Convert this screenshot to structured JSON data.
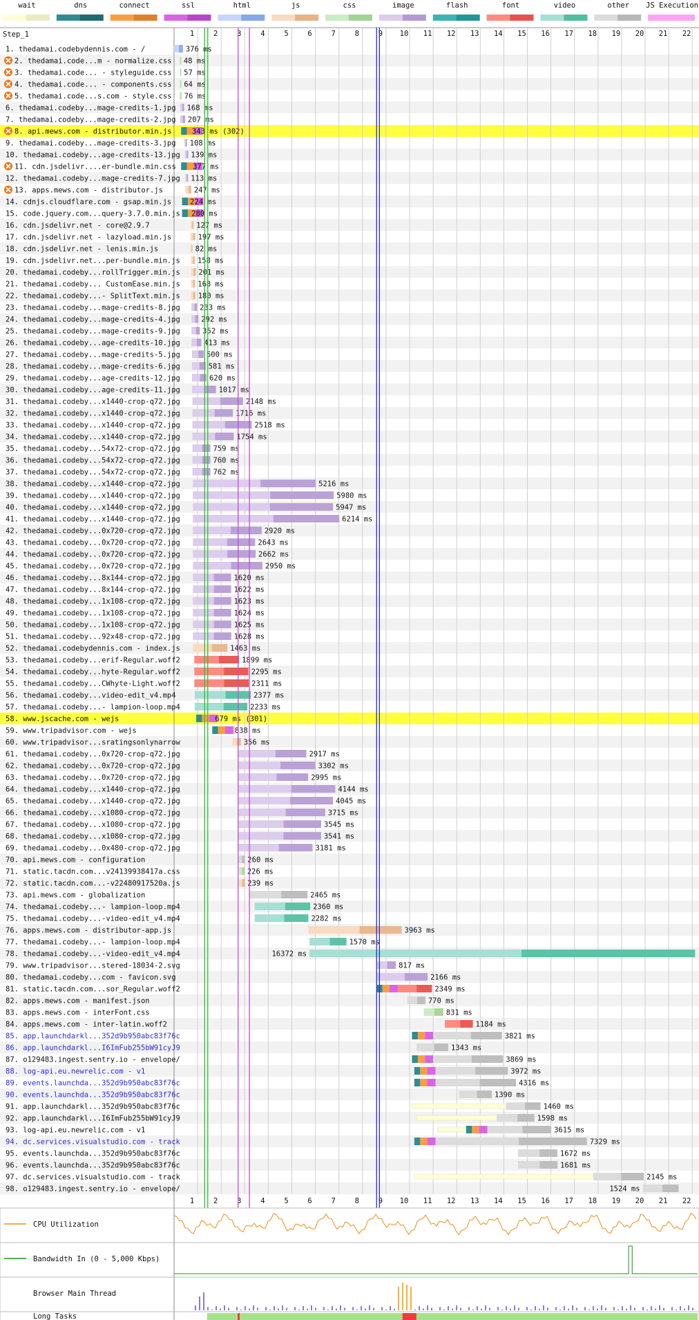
{
  "legend": [
    {
      "label": "wait",
      "light": "#fefed6",
      "dark": "#ecebc6"
    },
    {
      "label": "dns",
      "light": "#2f8d91",
      "dark": "#1c6c70"
    },
    {
      "label": "connect",
      "light": "#fd9d3f",
      "dark": "#e3802a"
    },
    {
      "label": "ssl",
      "light": "#d865e6",
      "dark": "#bc44cc"
    },
    {
      "label": "html",
      "light": "#c5d7ff",
      "dark": "#87a8ea"
    },
    {
      "label": "js",
      "light": "#f8dbc0",
      "dark": "#e7b286"
    },
    {
      "label": "css",
      "light": "#cdebc2",
      "dark": "#a3d296"
    },
    {
      "label": "image",
      "light": "#dccdec",
      "dark": "#b49ad3"
    },
    {
      "label": "flash",
      "light": "#3ab4b4",
      "dark": "#219696"
    },
    {
      "label": "font",
      "light": "#ff8a80",
      "dark": "#e4534d"
    },
    {
      "label": "video",
      "light": "#a6dfd4",
      "dark": "#4fbf9e"
    },
    {
      "label": "other",
      "light": "#dcdcdc",
      "dark": "#b8b8b8"
    },
    {
      "label": "JS Execution",
      "light": "#ffa3f3",
      "dark": "#ffa3f3"
    }
  ],
  "step_label": "Step_1",
  "axis_ticks": [
    "1",
    "2",
    "3",
    "4",
    "5",
    "6",
    "7",
    "8",
    "9",
    "10",
    "11",
    "12",
    "13",
    "14",
    "15",
    "16",
    "17",
    "18",
    "19",
    "20",
    "21",
    "22"
  ],
  "markers": [
    {
      "t": 1.3,
      "color": "#2fbd31"
    },
    {
      "t": 1.43,
      "color": "#2fbd31"
    },
    {
      "t": 2.72,
      "color": "#c54ad3"
    },
    {
      "t": 3.2,
      "color": "#c54ad3"
    },
    {
      "t": 8.6,
      "color": "#2a2ad6"
    },
    {
      "t": 8.72,
      "color": "#2a2ad6"
    }
  ],
  "requests": [
    {
      "n": "1.",
      "host": "thedamai.codebydennis.com - /",
      "type": "html",
      "s": 0.0,
      "dur": 0.376,
      "label": "376 ms"
    },
    {
      "n": "2.",
      "host": "thedamai.code...m - normalize.css",
      "type": "css",
      "s": 0.24,
      "dur": 0.048,
      "label": "48 ms",
      "warn": true
    },
    {
      "n": "3.",
      "host": "thedamai.code... - styleguide.css",
      "type": "css",
      "s": 0.24,
      "dur": 0.057,
      "label": "57 ms",
      "warn": true
    },
    {
      "n": "4.",
      "host": "thedamai.code... - components.css",
      "type": "css",
      "s": 0.24,
      "dur": 0.064,
      "label": "64 ms",
      "warn": true
    },
    {
      "n": "5.",
      "host": "thedamai.code...s.com - style.css",
      "type": "css",
      "s": 0.24,
      "dur": 0.076,
      "label": "76 ms",
      "warn": true
    },
    {
      "n": "6.",
      "host": "thedamai.codeby...mage-credits-1.jpg",
      "type": "image",
      "s": 0.26,
      "dur": 0.168,
      "label": "168 ms"
    },
    {
      "n": "7.",
      "host": "thedamai.codeby...mage-credits-2.jpg",
      "type": "image",
      "s": 0.26,
      "dur": 0.207,
      "label": "207 ms"
    },
    {
      "n": "8.",
      "host": "api.mews.com - distributor.min.js",
      "type": "js",
      "s": 0.3,
      "dur": 0.343,
      "label": "343 ms (302)",
      "warn": true,
      "hl": true,
      "conn": true
    },
    {
      "n": "9.",
      "host": "thedamai.codeby...mage-credits-3.jpg",
      "type": "image",
      "s": 0.44,
      "dur": 0.108,
      "label": "108 ms"
    },
    {
      "n": "10.",
      "host": "thedamai.codeby...age-credits-13.jpg",
      "type": "image",
      "s": 0.46,
      "dur": 0.139,
      "label": "139 ms"
    },
    {
      "n": "11.",
      "host": "cdn.jsdelivr....er-bundle.min.css",
      "type": "css",
      "s": 0.3,
      "dur": 0.377,
      "label": "377 ms",
      "warn": true,
      "conn": true
    },
    {
      "n": "12.",
      "host": "thedamai.codeby...mage-credits-7.jpg",
      "type": "image",
      "s": 0.48,
      "dur": 0.113,
      "label": "113 ms"
    },
    {
      "n": "13.",
      "host": "apps.mews.com - distributor.js",
      "type": "js",
      "s": 0.48,
      "dur": 0.247,
      "label": "247 ms",
      "warn": true
    },
    {
      "n": "14.",
      "host": "cdnjs.cloudflare.com - gsap.min.js",
      "type": "js",
      "s": 0.34,
      "dur": 0.224,
      "label": "224 ms",
      "conn": true
    },
    {
      "n": "15.",
      "host": "code.jquery.com...query-3.7.0.min.js",
      "type": "js",
      "s": 0.34,
      "dur": 0.28,
      "label": "280 ms",
      "conn": true
    },
    {
      "n": "16.",
      "host": "cdn.jsdelivr.net - core@2.9.7",
      "type": "js",
      "s": 0.7,
      "dur": 0.127,
      "label": "127 ms"
    },
    {
      "n": "17.",
      "host": "cdn.jsdelivr.net - lazyload.min.js",
      "type": "js",
      "s": 0.7,
      "dur": 0.197,
      "label": "197 ms"
    },
    {
      "n": "18.",
      "host": "cdn.jsdelivr.net - lenis.min.js",
      "type": "js",
      "s": 0.7,
      "dur": 0.082,
      "label": "82 ms"
    },
    {
      "n": "19.",
      "host": "cdn.jsdelivr.net...per-bundle.min.js",
      "type": "js",
      "s": 0.72,
      "dur": 0.158,
      "label": "158 ms"
    },
    {
      "n": "20.",
      "host": "thedamai.codeby...rollTrigger.min.js",
      "type": "js",
      "s": 0.72,
      "dur": 0.201,
      "label": "201 ms"
    },
    {
      "n": "21.",
      "host": "thedamai.codeby... CustomEase.min.js",
      "type": "js",
      "s": 0.72,
      "dur": 0.168,
      "label": "168 ms"
    },
    {
      "n": "22.",
      "host": "thedamai.codeby...- SplitText.min.js",
      "type": "js",
      "s": 0.72,
      "dur": 0.18,
      "label": "180 ms"
    },
    {
      "n": "23.",
      "host": "thedamai.codeby...mage-credits-8.jpg",
      "type": "image",
      "s": 0.74,
      "dur": 0.233,
      "label": "233 ms"
    },
    {
      "n": "24.",
      "host": "thedamai.codeby...mage-credits-4.jpg",
      "type": "image",
      "s": 0.74,
      "dur": 0.292,
      "label": "292 ms"
    },
    {
      "n": "25.",
      "host": "thedamai.codeby...mage-credits-9.jpg",
      "type": "image",
      "s": 0.74,
      "dur": 0.352,
      "label": "352 ms"
    },
    {
      "n": "26.",
      "host": "thedamai.codeby...age-credits-10.jpg",
      "type": "image",
      "s": 0.74,
      "dur": 0.413,
      "label": "413 ms"
    },
    {
      "n": "27.",
      "host": "thedamai.codeby...mage-credits-5.jpg",
      "type": "image",
      "s": 0.76,
      "dur": 0.5,
      "label": "500 ms"
    },
    {
      "n": "28.",
      "host": "thedamai.codeby...mage-credits-6.jpg",
      "type": "image",
      "s": 0.76,
      "dur": 0.581,
      "label": "581 ms"
    },
    {
      "n": "29.",
      "host": "thedamai.codeby...age-credits-12.jpg",
      "type": "image",
      "s": 0.76,
      "dur": 0.62,
      "label": "620 ms"
    },
    {
      "n": "30.",
      "host": "thedamai.codeby...age-credits-11.jpg",
      "type": "image",
      "s": 0.76,
      "dur": 1.017,
      "label": "1017 ms"
    },
    {
      "n": "31.",
      "host": "thedamai.codeby...x1440-crop-q72.jpg",
      "type": "image",
      "s": 0.78,
      "dur": 2.148,
      "label": "2148 ms"
    },
    {
      "n": "32.",
      "host": "thedamai.codeby...x1440-crop-q72.jpg",
      "type": "image",
      "s": 0.78,
      "dur": 1.716,
      "label": "1716 ms"
    },
    {
      "n": "33.",
      "host": "thedamai.codeby...x1440-crop-q72.jpg",
      "type": "image",
      "s": 0.78,
      "dur": 2.518,
      "label": "2518 ms"
    },
    {
      "n": "34.",
      "host": "thedamai.codeby...x1440-crop-q72.jpg",
      "type": "image",
      "s": 0.78,
      "dur": 1.754,
      "label": "1754 ms"
    },
    {
      "n": "35.",
      "host": "thedamai.codeby...54x72-crop-q72.jpg",
      "type": "image",
      "s": 0.78,
      "dur": 0.759,
      "label": "759 ms"
    },
    {
      "n": "36.",
      "host": "thedamai.codeby...54x72-crop-q72.jpg",
      "type": "image",
      "s": 0.78,
      "dur": 0.76,
      "label": "760 ms"
    },
    {
      "n": "37.",
      "host": "thedamai.codeby...54x72-crop-q72.jpg",
      "type": "image",
      "s": 0.78,
      "dur": 0.762,
      "label": "762 ms"
    },
    {
      "n": "38.",
      "host": "thedamai.codeby...x1440-crop-q72.jpg",
      "type": "image",
      "s": 0.8,
      "dur": 5.216,
      "label": "5216 ms"
    },
    {
      "n": "39.",
      "host": "thedamai.codeby...x1440-crop-q72.jpg",
      "type": "image",
      "s": 0.8,
      "dur": 5.98,
      "label": "5980 ms"
    },
    {
      "n": "40.",
      "host": "thedamai.codeby...x1440-crop-q72.jpg",
      "type": "image",
      "s": 0.8,
      "dur": 5.947,
      "label": "5947 ms"
    },
    {
      "n": "41.",
      "host": "thedamai.codeby...x1440-crop-q72.jpg",
      "type": "image",
      "s": 0.8,
      "dur": 6.214,
      "label": "6214 ms"
    },
    {
      "n": "42.",
      "host": "thedamai.codeby...0x720-crop-q72.jpg",
      "type": "image",
      "s": 0.8,
      "dur": 2.92,
      "label": "2920 ms"
    },
    {
      "n": "43.",
      "host": "thedamai.codeby...0x720-crop-q72.jpg",
      "type": "image",
      "s": 0.8,
      "dur": 2.643,
      "label": "2643 ms"
    },
    {
      "n": "44.",
      "host": "thedamai.codeby...0x720-crop-q72.jpg",
      "type": "image",
      "s": 0.8,
      "dur": 2.662,
      "label": "2662 ms"
    },
    {
      "n": "45.",
      "host": "thedamai.codeby...0x720-crop-q72.jpg",
      "type": "image",
      "s": 0.8,
      "dur": 2.95,
      "label": "2950 ms"
    },
    {
      "n": "46.",
      "host": "thedamai.codeby...8x144-crop-q72.jpg",
      "type": "image",
      "s": 0.8,
      "dur": 1.62,
      "label": "1620 ms"
    },
    {
      "n": "47.",
      "host": "thedamai.codeby...8x144-crop-q72.jpg",
      "type": "image",
      "s": 0.8,
      "dur": 1.622,
      "label": "1622 ms"
    },
    {
      "n": "48.",
      "host": "thedamai.codeby...1x108-crop-q72.jpg",
      "type": "image",
      "s": 0.8,
      "dur": 1.623,
      "label": "1623 ms"
    },
    {
      "n": "49.",
      "host": "thedamai.codeby...1x108-crop-q72.jpg",
      "type": "image",
      "s": 0.8,
      "dur": 1.624,
      "label": "1624 ms"
    },
    {
      "n": "50.",
      "host": "thedamai.codeby...1x108-crop-q72.jpg",
      "type": "image",
      "s": 0.8,
      "dur": 1.625,
      "label": "1625 ms"
    },
    {
      "n": "51.",
      "host": "thedamai.codeby...92x48-crop-q72.jpg",
      "type": "image",
      "s": 0.8,
      "dur": 1.628,
      "label": "1628 ms"
    },
    {
      "n": "52.",
      "host": "thedamai.codebydennis.com - index.js",
      "type": "js",
      "s": 0.8,
      "dur": 1.463,
      "label": "1463 ms"
    },
    {
      "n": "53.",
      "host": "thedamai.codeby...erif-Regular.woff2",
      "type": "font",
      "s": 0.86,
      "dur": 1.899,
      "label": "1899 ms"
    },
    {
      "n": "54.",
      "host": "thedamai.codeby...hyte-Regular.woff2",
      "type": "font",
      "s": 0.86,
      "dur": 2.295,
      "label": "2295 ms"
    },
    {
      "n": "55.",
      "host": "thedamai.codeby...CWhyte-Light.woff2",
      "type": "font",
      "s": 0.86,
      "dur": 2.311,
      "label": "2311 ms"
    },
    {
      "n": "56.",
      "host": "thedamai.codeby...video-edit_v4.mp4",
      "type": "video",
      "s": 0.88,
      "dur": 2.377,
      "label": "2377 ms"
    },
    {
      "n": "57.",
      "host": "thedamai.codeby...- lampion-loop.mp4",
      "type": "video",
      "s": 0.88,
      "dur": 2.233,
      "label": "2233 ms"
    },
    {
      "n": "58.",
      "host": "www.jscache.com - wejs",
      "type": "js",
      "s": 0.94,
      "dur": 0.679,
      "label": "679 ms (301)",
      "hl": true,
      "conn": true
    },
    {
      "n": "59.",
      "host": "www.tripadvisor.com - wejs",
      "type": "js",
      "s": 1.62,
      "dur": 0.838,
      "label": "838 ms",
      "conn": true
    },
    {
      "n": "60.",
      "host": "www.tripadvisor...sratingsonlynarrow",
      "type": "js",
      "s": 2.48,
      "dur": 0.356,
      "label": "356 ms"
    },
    {
      "n": "61.",
      "host": "thedamai.codeby...0x720-crop-q72.jpg",
      "type": "image",
      "s": 2.7,
      "dur": 2.917,
      "label": "2917 ms"
    },
    {
      "n": "62.",
      "host": "thedamai.codeby...0x720-crop-q72.jpg",
      "type": "image",
      "s": 2.7,
      "dur": 3.302,
      "label": "3302 ms"
    },
    {
      "n": "63.",
      "host": "thedamai.codeby...0x720-crop-q72.jpg",
      "type": "image",
      "s": 2.7,
      "dur": 2.995,
      "label": "2995 ms"
    },
    {
      "n": "64.",
      "host": "thedamai.codeby...x1440-crop-q72.jpg",
      "type": "image",
      "s": 2.7,
      "dur": 4.144,
      "label": "4144 ms"
    },
    {
      "n": "65.",
      "host": "thedamai.codeby...x1440-crop-q72.jpg",
      "type": "image",
      "s": 2.7,
      "dur": 4.045,
      "label": "4045 ms"
    },
    {
      "n": "66.",
      "host": "thedamai.codeby...x1080-crop-q72.jpg",
      "type": "image",
      "s": 2.7,
      "dur": 3.715,
      "label": "3715 ms"
    },
    {
      "n": "67.",
      "host": "thedamai.codeby...x1080-crop-q72.jpg",
      "type": "image",
      "s": 2.7,
      "dur": 3.545,
      "label": "3545 ms"
    },
    {
      "n": "68.",
      "host": "thedamai.codeby...x1080-crop-q72.jpg",
      "type": "image",
      "s": 2.7,
      "dur": 3.541,
      "label": "3541 ms"
    },
    {
      "n": "69.",
      "host": "thedamai.codeby...0x480-crop-q72.jpg",
      "type": "image",
      "s": 2.7,
      "dur": 3.181,
      "label": "3181 ms"
    },
    {
      "n": "70.",
      "host": "api.mews.com - configuration",
      "type": "other",
      "s": 2.74,
      "dur": 0.26,
      "label": "260 ms"
    },
    {
      "n": "71.",
      "host": "static.tacdn.com...v24139938417a.css",
      "type": "css",
      "s": 2.76,
      "dur": 0.226,
      "label": "226 ms"
    },
    {
      "n": "72.",
      "host": "static.tacdn.com...-v22480917520a.js",
      "type": "js",
      "s": 2.76,
      "dur": 0.239,
      "label": "239 ms"
    },
    {
      "n": "73.",
      "host": "api.mews.com - globalization",
      "type": "other",
      "s": 3.2,
      "dur": 2.465,
      "label": "2465 ms"
    },
    {
      "n": "74.",
      "host": "thedamai.codeby...- lampion-loop.mp4",
      "type": "video",
      "s": 3.42,
      "dur": 2.36,
      "label": "2360 ms"
    },
    {
      "n": "75.",
      "host": "thedamai.codeby...-video-edit_v4.mp4",
      "type": "video",
      "s": 3.42,
      "dur": 2.282,
      "label": "2282 ms"
    },
    {
      "n": "76.",
      "host": "apps.mews.com - distributor-app.js",
      "type": "js",
      "s": 5.7,
      "dur": 3.963,
      "label": "3963 ms"
    },
    {
      "n": "77.",
      "host": "thedamai.codeby...- lampion-loop.mp4",
      "type": "video",
      "s": 5.75,
      "dur": 1.57,
      "label": "1570 ms"
    },
    {
      "n": "78.",
      "host": "thedamai.codeby...-video-edit_v4.mp4",
      "type": "video",
      "s": 5.75,
      "dur": 16.372,
      "label": "16372 ms",
      "lbl_left": true
    },
    {
      "n": "79.",
      "host": "www.tripadvisor...stered-18034-2.svg",
      "type": "image",
      "s": 8.6,
      "dur": 0.817,
      "label": "817 ms"
    },
    {
      "n": "80.",
      "host": "thedamai.codeby...com - favicon.svg",
      "type": "image",
      "s": 8.6,
      "dur": 2.166,
      "label": "2166 ms"
    },
    {
      "n": "81.",
      "host": "static.tacdn.com...sor_Regular.woff2",
      "type": "font",
      "s": 8.6,
      "dur": 2.349,
      "label": "2349 ms",
      "conn": true
    },
    {
      "n": "82.",
      "host": "apps.mews.com - manifest.json",
      "type": "other",
      "s": 9.9,
      "dur": 0.77,
      "label": "770 ms"
    },
    {
      "n": "83.",
      "host": "apps.mews.com - interFont.css",
      "type": "css",
      "s": 10.6,
      "dur": 0.831,
      "label": "831 ms"
    },
    {
      "n": "84.",
      "host": "apps.mews.com - inter-latin.woff2",
      "type": "font",
      "s": 11.5,
      "dur": 1.184,
      "label": "1184 ms"
    },
    {
      "n": "85.",
      "host": "app.launchdarkl...352d9b950abc83f76c",
      "type": "other",
      "s": 10.1,
      "dur": 3.821,
      "label": "3821 ms",
      "blue": true,
      "conn": true
    },
    {
      "n": "86.",
      "host": "app.launchdarkl...I6ImFub255bW91cyJ9",
      "type": "other",
      "s": 10.3,
      "dur": 1.343,
      "label": "1343 ms",
      "blue": true
    },
    {
      "n": "87.",
      "host": "o129483.ingest.sentry.io - envelope/",
      "type": "other",
      "s": 10.1,
      "dur": 3.869,
      "label": "3869 ms",
      "conn": true
    },
    {
      "n": "88.",
      "host": "log-api.eu.newrelic.com - v1",
      "type": "other",
      "s": 10.2,
      "dur": 3.972,
      "label": "3972 ms",
      "blue": true,
      "conn": true
    },
    {
      "n": "89.",
      "host": "events.launchda...352d9b950abc83f76c",
      "type": "other",
      "s": 10.2,
      "dur": 4.316,
      "label": "4316 ms",
      "blue": true,
      "conn": true
    },
    {
      "n": "90.",
      "host": "events.launchda...352d9b950abc83f76c",
      "type": "other",
      "s": 12.1,
      "dur": 1.39,
      "label": "1390 ms",
      "blue": true
    },
    {
      "n": "91.",
      "host": "app.launchdarkl...352d9b950abc83f76c",
      "type": "other",
      "s": 10.1,
      "dur": 5.46,
      "label": "1460 ms",
      "wait": 4.0
    },
    {
      "n": "92.",
      "host": "app.launchdarkl...I6ImFub255bW91cyJ9",
      "type": "other",
      "s": 10.3,
      "dur": 4.998,
      "label": "1598 ms",
      "wait": 3.4
    },
    {
      "n": "93.",
      "host": "log-api.eu.newrelic.com - v1",
      "type": "other",
      "s": 11.2,
      "dur": 4.815,
      "label": "3615 ms",
      "conn": true,
      "wait": 1.2
    },
    {
      "n": "94.",
      "host": "dc.services.visualstudio.com - track",
      "type": "other",
      "s": 10.2,
      "dur": 7.329,
      "label": "7329 ms",
      "blue": true,
      "conn": true
    },
    {
      "n": "95.",
      "host": "events.launchda...352d9b950abc83f76c",
      "type": "other",
      "s": 14.6,
      "dur": 1.672,
      "label": "1672 ms"
    },
    {
      "n": "96.",
      "host": "events.launchda...352d9b950abc83f76c",
      "type": "other",
      "s": 14.6,
      "dur": 1.681,
      "label": "1681 ms"
    },
    {
      "n": "97.",
      "host": "dc.services.visualstudio.com - track",
      "type": "other",
      "s": 10.2,
      "dur": 9.745,
      "label": "2145 ms",
      "wait": 7.6
    },
    {
      "n": "98.",
      "host": "o129483.ingest.sentry.io - envelope/",
      "type": "other",
      "s": 19.9,
      "dur": 1.524,
      "label": "1524 ms",
      "lbl_left": true
    }
  ],
  "graphs": [
    {
      "label": "CPU Utilization",
      "color": "#f08c14"
    },
    {
      "label": "Bandwidth In (0 - 5,000 Kbps)",
      "color": "#1e8f1e"
    },
    {
      "label": "Browser Main Thread",
      "color": ""
    },
    {
      "label": "Long Tasks",
      "color": ""
    }
  ]
}
